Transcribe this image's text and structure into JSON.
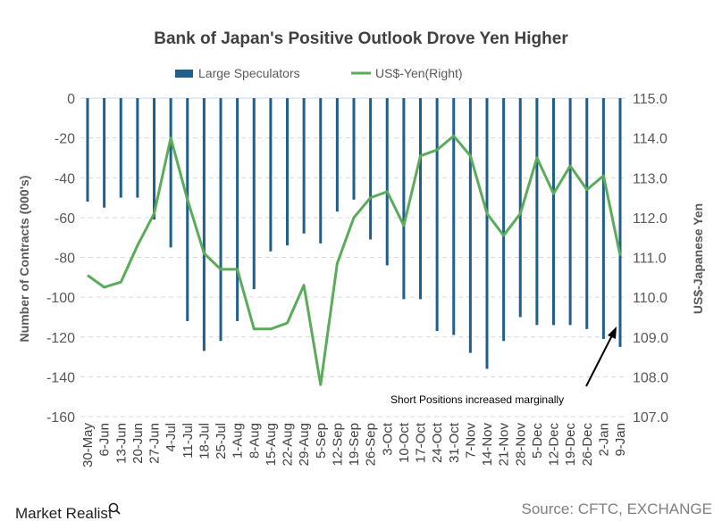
{
  "chart_data": {
    "type": "bar+line",
    "title": "Bank of Japan's Positive Outlook Drove Yen Higher",
    "ylabel": "Number of Contracts (000's)",
    "y2label": "US$-Japanese Yen",
    "ylim": [
      -160,
      0
    ],
    "y2lim": [
      107.0,
      115.0
    ],
    "yticks": [
      "0",
      "-20",
      "-40",
      "-60",
      "-80",
      "-100",
      "-120",
      "-140",
      "-160"
    ],
    "y2ticks": [
      "115.0",
      "114.0",
      "113.0",
      "112.0",
      "111.0",
      "110.0",
      "109.0",
      "108.0",
      "107.0"
    ],
    "grid": true,
    "legend_position": "top",
    "categories": [
      "30-May",
      "6-Jun",
      "13-Jun",
      "20-Jun",
      "27-Jun",
      "4-Jul",
      "11-Jul",
      "18-Jul",
      "25-Jul",
      "1-Aug",
      "8-Aug",
      "15-Aug",
      "22-Aug",
      "29-Aug",
      "5-Sep",
      "12-Sep",
      "19-Sep",
      "26-Sep",
      "3-Oct",
      "10-Oct",
      "17-Oct",
      "24-Oct",
      "31-Oct",
      "7-Nov",
      "14-Nov",
      "21-Nov",
      "28-Nov",
      "5-Dec",
      "12-Dec",
      "19-Dec",
      "26-Dec",
      "2-Jan",
      "9-Jan"
    ],
    "series": [
      {
        "name": "Large Speculators",
        "type": "bar",
        "axis": "left",
        "color": "#1f5f8b",
        "values": [
          -52,
          -55,
          -50,
          -50,
          -61,
          -75,
          -112,
          -127,
          -122,
          -112,
          -96,
          -77,
          -74,
          -68,
          -73,
          -57,
          -51,
          -71,
          -84,
          -101,
          -101,
          -117,
          -119,
          -128,
          -136,
          -122,
          -110,
          -114,
          -114,
          -114,
          -116,
          -121,
          -125
        ]
      },
      {
        "name": "US$-Yen(Right)",
        "type": "line",
        "axis": "right",
        "color": "#5aab5a",
        "values": [
          110.55,
          110.25,
          110.38,
          111.3,
          112.1,
          114.0,
          112.45,
          111.1,
          110.7,
          110.7,
          109.2,
          109.2,
          109.35,
          110.3,
          107.8,
          110.85,
          112.0,
          112.5,
          112.65,
          111.8,
          113.55,
          113.7,
          114.05,
          113.55,
          112.1,
          111.55,
          112.1,
          113.5,
          112.6,
          113.3,
          112.7,
          113.05,
          111.05
        ]
      }
    ],
    "annotation": "Short Positions increased marginally",
    "source": "Source: CFTC, EXCHANGE"
  },
  "logo": "Market Realist"
}
